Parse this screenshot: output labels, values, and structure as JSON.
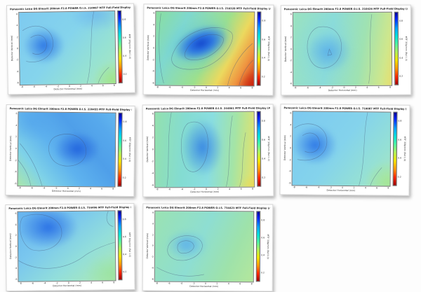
{
  "page": {
    "background": "#fdfdfd",
    "description": "Grid of 8 MTF full-field contour plot thumbnails"
  },
  "axes": {
    "x_label": "Detector Horizontal (mm)",
    "y_label": "Detector Vertical (mm)",
    "x_ticks": [
      "-8",
      "-6",
      "-4",
      "-2",
      "0",
      "2",
      "4",
      "6",
      "8"
    ],
    "y_ticks": [
      "6",
      "4",
      "2",
      "0",
      "-2",
      "-4",
      "-6"
    ]
  },
  "colorbar": {
    "label": "MTF 30lp/mm (Rel 1.0)",
    "ticks": [
      "0.8",
      "0.6",
      "0.4",
      "0.2"
    ],
    "range": [
      0,
      1
    ],
    "gradient_top_to_bottom": [
      "#00008f",
      "#0020ff",
      "#00a0ff",
      "#00e0d8",
      "#50f0a0",
      "#aaee60",
      "#f0e400",
      "#ff9400",
      "#ff2400",
      "#9c0000"
    ]
  },
  "plots": [
    {
      "id": "p1",
      "serial": "210087",
      "title": "Panasonic Leica DG Elmarit 200mm F2.8 POWER O.I.S. 210087 MTF Full-Field Display (Average of Sag+Tan)"
    },
    {
      "id": "p2",
      "serial": "210328",
      "title": "Panasonic Leica DG Elmarit 200mm F2.8 POWER O.I.S. 210328 MTF Full-Field Display (Average of Sag+Tan)"
    },
    {
      "id": "p3",
      "serial": "210426",
      "title": "Panasonic Leica DG Elmarit 200mm F2.8 POWER O.I.S. 210426 MTF Full-Field Display (Average of Sag+Tan)"
    },
    {
      "id": "p4",
      "serial": "220455",
      "title": "Panasonic Leica DG Elmarit 200mm F2.8 POWER O.I.S. 220455 MTF Full-Field Display (Average of Sag+Tan)"
    },
    {
      "id": "p5",
      "serial": "244861",
      "title": "Panasonic Leica DG Elmarit 200mm F2.8 POWER O.I.S. 244861 MTF Full-Field Display (Average of Sag+Tan)"
    },
    {
      "id": "p6",
      "serial": "710087",
      "title": "Panasonic Leica DG Elmarit 200mm F2.8 POWER O.I.S. 710087 MTF Full-Field Display (Average of Sag+Tan)"
    },
    {
      "id": "p7",
      "serial": "734496",
      "title": "Panasonic Leica DG Elmarit 200mm F2.8 POWER O.I.S. 734496 MTF Full-Field Display (Average of Sag+Tan)"
    },
    {
      "id": "p8",
      "serial": "734423",
      "title": "Panasonic Leica DG Elmarit 200mm F2.8 POWER O.I.S. 734423 MTF Full-Field Display (Average of Sag+Tan)"
    }
  ],
  "chart_data": [
    {
      "type": "contour",
      "title": "Panasonic Leica DG Elmarit 200mm F2.8 POWER O.I.S. 210087 MTF Full-Field Display (Average of Sag+Tan)",
      "xlabel": "Detector Horizontal (mm)",
      "ylabel": "Detector Vertical (mm)",
      "x_range": [
        -8,
        8
      ],
      "y_range": [
        -6,
        6
      ],
      "colorbar_label": "MTF 30lp/mm (Rel 1.0)",
      "colorbar_range": [
        0,
        1
      ],
      "x": [
        -8,
        -4,
        0,
        4,
        8
      ],
      "y": [
        6,
        3,
        0,
        -3,
        -6
      ],
      "values": [
        [
          0.72,
          0.72,
          0.7,
          0.68,
          0.66
        ],
        [
          0.76,
          0.78,
          0.72,
          0.68,
          0.64
        ],
        [
          0.78,
          0.8,
          0.72,
          0.66,
          0.62
        ],
        [
          0.74,
          0.76,
          0.7,
          0.64,
          0.58
        ],
        [
          0.7,
          0.7,
          0.66,
          0.6,
          0.55
        ]
      ],
      "pattern": "high (blue) lobe left of center, falling to green at bottom-right corner"
    },
    {
      "type": "contour",
      "title": "Panasonic Leica DG Elmarit 200mm F2.8 POWER O.I.S. 210328 MTF Full-Field Display (Average of Sag+Tan)",
      "xlabel": "Detector Horizontal (mm)",
      "ylabel": "Detector Vertical (mm)",
      "x_range": [
        -8,
        8
      ],
      "y_range": [
        -6,
        6
      ],
      "colorbar_label": "MTF 30lp/mm (Rel 1.0)",
      "colorbar_range": [
        0,
        1
      ],
      "x": [
        -8,
        -4,
        0,
        4,
        8
      ],
      "y": [
        6,
        3,
        0,
        -3,
        -6
      ],
      "values": [
        [
          0.55,
          0.62,
          0.7,
          0.75,
          0.6
        ],
        [
          0.58,
          0.72,
          0.82,
          0.8,
          0.55
        ],
        [
          0.6,
          0.8,
          0.85,
          0.72,
          0.48
        ],
        [
          0.55,
          0.75,
          0.72,
          0.55,
          0.35
        ],
        [
          0.5,
          0.6,
          0.55,
          0.42,
          0.25
        ]
      ],
      "pattern": "tilted dark-blue ellipse in center, strong falloff through yellow/orange to red at bottom-right corner"
    },
    {
      "type": "contour",
      "title": "Panasonic Leica DG Elmarit 200mm F2.8 POWER O.I.S. 210426 MTF Full-Field Display (Average of Sag+Tan)",
      "xlabel": "Detector Horizontal (mm)",
      "ylabel": "Detector Vertical (mm)",
      "x_range": [
        -8,
        8
      ],
      "y_range": [
        -6,
        6
      ],
      "colorbar_label": "MTF 30lp/mm (Rel 1.0)",
      "colorbar_range": [
        0,
        1
      ],
      "x": [
        -8,
        -4,
        0,
        4,
        8
      ],
      "y": [
        6,
        3,
        0,
        -3,
        -6
      ],
      "values": [
        [
          0.62,
          0.64,
          0.64,
          0.6,
          0.55
        ],
        [
          0.64,
          0.7,
          0.68,
          0.62,
          0.52
        ],
        [
          0.64,
          0.74,
          0.7,
          0.62,
          0.5
        ],
        [
          0.62,
          0.72,
          0.68,
          0.6,
          0.5
        ],
        [
          0.6,
          0.64,
          0.62,
          0.58,
          0.48
        ]
      ],
      "pattern": "soft blue blob left of center on cyan-green field, yellow-green right edge"
    },
    {
      "type": "contour",
      "title": "Panasonic Leica DG Elmarit 200mm F2.8 POWER O.I.S. 220455 MTF Full-Field Display (Average of Sag+Tan)",
      "xlabel": "Detector Horizontal (mm)",
      "ylabel": "Detector Vertical (mm)",
      "x_range": [
        -8,
        8
      ],
      "y_range": [
        -6,
        6
      ],
      "colorbar_label": "MTF 30lp/mm (Rel 1.0)",
      "colorbar_range": [
        0,
        1
      ],
      "x": [
        -8,
        -4,
        0,
        4,
        8
      ],
      "y": [
        6,
        3,
        0,
        -3,
        -6
      ],
      "values": [
        [
          0.72,
          0.74,
          0.76,
          0.76,
          0.74
        ],
        [
          0.68,
          0.74,
          0.8,
          0.8,
          0.76
        ],
        [
          0.62,
          0.72,
          0.84,
          0.86,
          0.78
        ],
        [
          0.55,
          0.66,
          0.8,
          0.82,
          0.76
        ],
        [
          0.48,
          0.58,
          0.7,
          0.74,
          0.72
        ]
      ],
      "pattern": "strong blue field, darkest blue right of center, green wedge at bottom-left corner"
    },
    {
      "type": "contour",
      "title": "Panasonic Leica DG Elmarit 200mm F2.8 POWER O.I.S. 244861 MTF Full-Field Display (Average of Sag+Tan)",
      "xlabel": "Detector Horizontal (mm)",
      "ylabel": "Detector Vertical (mm)",
      "x_range": [
        -8,
        8
      ],
      "y_range": [
        -6,
        6
      ],
      "colorbar_label": "MTF 30lp/mm (Rel 1.0)",
      "colorbar_range": [
        0,
        1
      ],
      "x": [
        -8,
        -4,
        0,
        4,
        8
      ],
      "y": [
        6,
        3,
        0,
        -3,
        -6
      ],
      "values": [
        [
          0.58,
          0.66,
          0.76,
          0.7,
          0.58
        ],
        [
          0.58,
          0.7,
          0.8,
          0.72,
          0.56
        ],
        [
          0.56,
          0.7,
          0.82,
          0.74,
          0.54
        ],
        [
          0.55,
          0.66,
          0.76,
          0.7,
          0.5
        ],
        [
          0.52,
          0.6,
          0.68,
          0.6,
          0.44
        ]
      ],
      "pattern": "vertical blue ridge in center, green flanks, yellow-green at bottom-right edge"
    },
    {
      "type": "contour",
      "title": "Panasonic Leica DG Elmarit 200mm F2.8 POWER O.I.S. 710087 MTF Full-Field Display (Average of Sag+Tan)",
      "xlabel": "Detector Horizontal (mm)",
      "ylabel": "Detector Vertical (mm)",
      "x_range": [
        -8,
        8
      ],
      "y_range": [
        -6,
        6
      ],
      "colorbar_label": "MTF 30lp/mm (Rel 1.0)",
      "colorbar_range": [
        0,
        1
      ],
      "x": [
        -8,
        -4,
        0,
        4,
        8
      ],
      "y": [
        6,
        3,
        0,
        -3,
        -6
      ],
      "values": [
        [
          0.7,
          0.72,
          0.68,
          0.66,
          0.64
        ],
        [
          0.76,
          0.78,
          0.7,
          0.66,
          0.62
        ],
        [
          0.78,
          0.8,
          0.72,
          0.64,
          0.6
        ],
        [
          0.74,
          0.76,
          0.7,
          0.62,
          0.56
        ],
        [
          0.68,
          0.7,
          0.66,
          0.58,
          0.52
        ]
      ],
      "pattern": "blue lobe on left half, cyan field, greenish bottom-right corner"
    },
    {
      "type": "contour",
      "title": "Panasonic Leica DG Elmarit 200mm F2.8 POWER O.I.S. 734496 MTF Full-Field Display (Average of Sag+Tan)",
      "xlabel": "Detector Horizontal (mm)",
      "ylabel": "Detector Vertical (mm)",
      "x_range": [
        -8,
        8
      ],
      "y_range": [
        -6,
        6
      ],
      "colorbar_label": "MTF 30lp/mm (Rel 1.0)",
      "colorbar_range": [
        0,
        1
      ],
      "x": [
        -8,
        -4,
        0,
        4,
        8
      ],
      "y": [
        6,
        3,
        0,
        -3,
        -6
      ],
      "values": [
        [
          0.78,
          0.82,
          0.76,
          0.68,
          0.64
        ],
        [
          0.8,
          0.84,
          0.78,
          0.66,
          0.6
        ],
        [
          0.74,
          0.78,
          0.72,
          0.6,
          0.55
        ],
        [
          0.64,
          0.66,
          0.62,
          0.55,
          0.52
        ],
        [
          0.58,
          0.58,
          0.56,
          0.52,
          0.5
        ]
      ],
      "pattern": "large blue blob in upper-left quadrant, cyan-green toward bottom-right"
    },
    {
      "type": "contour",
      "title": "Panasonic Leica DG Elmarit 200mm F2.8 POWER O.I.S. 734423 MTF Full-Field Display (Average of Sag+Tan)",
      "xlabel": "Detector Horizontal (mm)",
      "ylabel": "Detector Vertical (mm)",
      "x_range": [
        -8,
        8
      ],
      "y_range": [
        -6,
        6
      ],
      "colorbar_label": "MTF 30lp/mm (Rel 1.0)",
      "colorbar_range": [
        0,
        1
      ],
      "x": [
        -8,
        -4,
        0,
        4,
        8
      ],
      "y": [
        6,
        3,
        0,
        -3,
        -6
      ],
      "values": [
        [
          0.58,
          0.6,
          0.58,
          0.56,
          0.55
        ],
        [
          0.58,
          0.68,
          0.62,
          0.56,
          0.54
        ],
        [
          0.6,
          0.72,
          0.66,
          0.56,
          0.53
        ],
        [
          0.58,
          0.64,
          0.6,
          0.55,
          0.52
        ],
        [
          0.55,
          0.58,
          0.56,
          0.54,
          0.52
        ]
      ],
      "pattern": "mostly green-cyan field with soft cyan-blue blob left of center"
    }
  ]
}
